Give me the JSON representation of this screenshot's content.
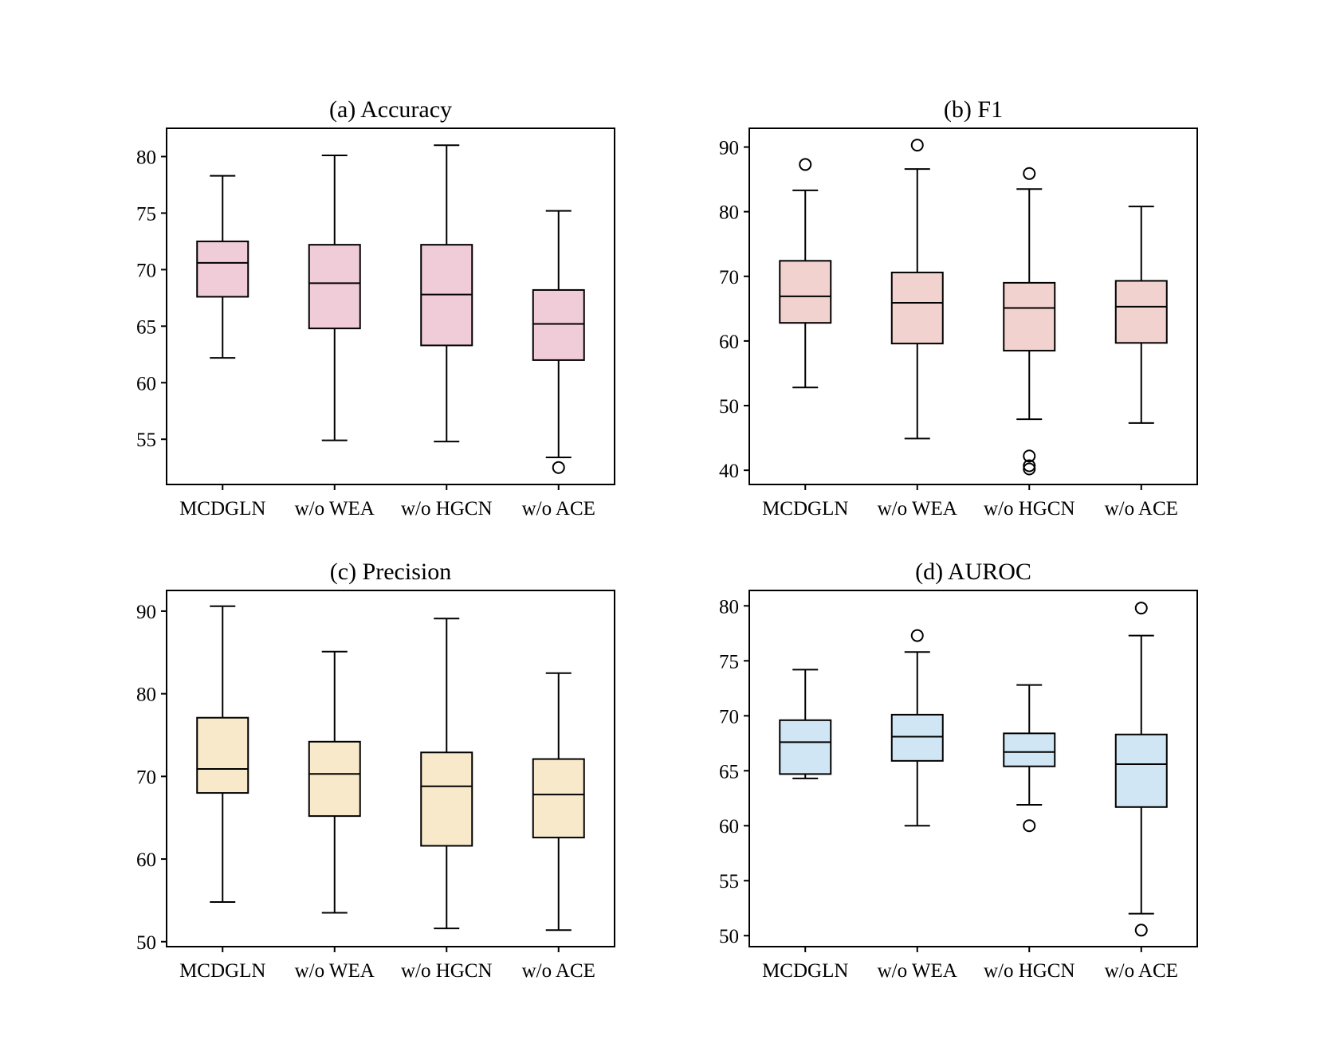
{
  "chart_data": [
    {
      "type": "box",
      "title": "(a) Accuracy",
      "categories": [
        "MCDGLN",
        "w/o WEA",
        "w/o HGCN",
        "w/o ACE"
      ],
      "ylim": [
        51.0,
        82.5
      ],
      "yticks": [
        55,
        60,
        65,
        70,
        75,
        80
      ],
      "box_color": "#f0ccd8",
      "grid": false,
      "boxes": [
        {
          "whisker_low": 62.2,
          "q1": 67.6,
          "median": 70.6,
          "q3": 72.5,
          "whisker_high": 78.3,
          "outliers": []
        },
        {
          "whisker_low": 54.9,
          "q1": 64.8,
          "median": 68.8,
          "q3": 72.2,
          "whisker_high": 80.1,
          "outliers": []
        },
        {
          "whisker_low": 54.8,
          "q1": 63.3,
          "median": 67.8,
          "q3": 72.2,
          "whisker_high": 81.0,
          "outliers": []
        },
        {
          "whisker_low": 53.4,
          "q1": 62.0,
          "median": 65.2,
          "q3": 68.2,
          "whisker_high": 75.2,
          "outliers": [
            52.5
          ]
        }
      ]
    },
    {
      "type": "box",
      "title": "(b) F1",
      "categories": [
        "MCDGLN",
        "w/o WEA",
        "w/o HGCN",
        "w/o ACE"
      ],
      "ylim": [
        37.8,
        92.9
      ],
      "yticks": [
        40,
        50,
        60,
        70,
        80,
        90
      ],
      "box_color": "#f2d2cf",
      "grid": false,
      "boxes": [
        {
          "whisker_low": 52.8,
          "q1": 62.8,
          "median": 66.9,
          "q3": 72.4,
          "whisker_high": 83.3,
          "outliers": [
            87.3
          ]
        },
        {
          "whisker_low": 44.9,
          "q1": 59.6,
          "median": 65.9,
          "q3": 70.6,
          "whisker_high": 86.6,
          "outliers": [
            90.3
          ]
        },
        {
          "whisker_low": 47.9,
          "q1": 58.5,
          "median": 65.1,
          "q3": 69.0,
          "whisker_high": 83.5,
          "outliers": [
            85.9,
            42.2,
            40.7,
            40.2
          ]
        },
        {
          "whisker_low": 47.3,
          "q1": 59.7,
          "median": 65.3,
          "q3": 69.3,
          "whisker_high": 80.8,
          "outliers": []
        }
      ]
    },
    {
      "type": "box",
      "title": "(c) Precision",
      "categories": [
        "MCDGLN",
        "w/o WEA",
        "w/o HGCN",
        "w/o ACE"
      ],
      "ylim": [
        49.4,
        92.5
      ],
      "yticks": [
        50,
        60,
        70,
        80,
        90
      ],
      "box_color": "#f8e9ca",
      "grid": false,
      "boxes": [
        {
          "whisker_low": 54.8,
          "q1": 68.0,
          "median": 70.9,
          "q3": 77.1,
          "whisker_high": 90.6,
          "outliers": []
        },
        {
          "whisker_low": 53.5,
          "q1": 65.2,
          "median": 70.3,
          "q3": 74.2,
          "whisker_high": 85.1,
          "outliers": []
        },
        {
          "whisker_low": 51.6,
          "q1": 61.6,
          "median": 68.8,
          "q3": 72.9,
          "whisker_high": 89.1,
          "outliers": []
        },
        {
          "whisker_low": 51.4,
          "q1": 62.6,
          "median": 67.8,
          "q3": 72.1,
          "whisker_high": 82.5,
          "outliers": []
        }
      ]
    },
    {
      "type": "box",
      "title": "(d) AUROC",
      "categories": [
        "MCDGLN",
        "w/o WEA",
        "w/o HGCN",
        "w/o ACE"
      ],
      "ylim": [
        49.0,
        81.4
      ],
      "yticks": [
        50,
        55,
        60,
        65,
        70,
        75,
        80
      ],
      "box_color": "#d0e6f5",
      "grid": false,
      "boxes": [
        {
          "whisker_low": 64.3,
          "q1": 64.7,
          "median": 67.6,
          "q3": 69.6,
          "whisker_high": 74.2,
          "outliers": []
        },
        {
          "whisker_low": 60.0,
          "q1": 65.9,
          "median": 68.1,
          "q3": 70.1,
          "whisker_high": 75.8,
          "outliers": [
            77.3
          ]
        },
        {
          "whisker_low": 61.9,
          "q1": 65.4,
          "median": 66.7,
          "q3": 68.4,
          "whisker_high": 72.8,
          "outliers": [
            60.0
          ]
        },
        {
          "whisker_low": 52.0,
          "q1": 61.7,
          "median": 65.6,
          "q3": 68.3,
          "whisker_high": 77.3,
          "outliers": [
            79.8,
            50.5
          ]
        }
      ]
    }
  ]
}
